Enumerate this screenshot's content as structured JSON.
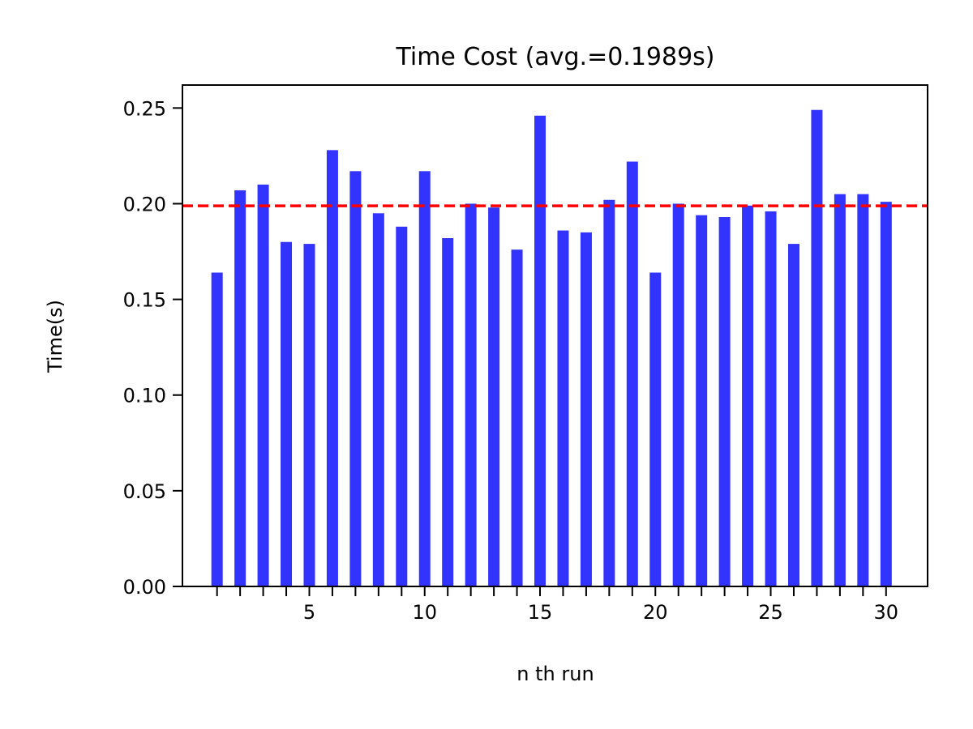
{
  "chart_data": {
    "type": "bar",
    "title": "Time Cost (avg.=0.1989s)",
    "xlabel": "n th run",
    "ylabel": "Time(s)",
    "x": [
      1,
      2,
      3,
      4,
      5,
      6,
      7,
      8,
      9,
      10,
      11,
      12,
      13,
      14,
      15,
      16,
      17,
      18,
      19,
      20,
      21,
      22,
      23,
      24,
      25,
      26,
      27,
      28,
      29,
      30
    ],
    "values": [
      0.164,
      0.207,
      0.21,
      0.18,
      0.179,
      0.228,
      0.217,
      0.195,
      0.188,
      0.217,
      0.182,
      0.2,
      0.198,
      0.176,
      0.246,
      0.186,
      0.185,
      0.202,
      0.222,
      0.164,
      0.2,
      0.194,
      0.193,
      0.199,
      0.196,
      0.179,
      0.249,
      0.205,
      0.205,
      0.201
    ],
    "average": 0.1989,
    "xlim": [
      -0.5,
      31.8
    ],
    "ylim": [
      0.0,
      0.262
    ],
    "xticks_major": [
      5,
      10,
      15,
      20,
      25,
      30
    ],
    "xticks_minor": [
      1,
      2,
      3,
      4,
      5,
      6,
      7,
      8,
      9,
      10,
      11,
      12,
      13,
      14,
      15,
      16,
      17,
      18,
      19,
      20,
      21,
      22,
      23,
      24,
      25,
      26,
      27,
      28,
      29,
      30
    ],
    "yticks": [
      0.0,
      0.05,
      0.1,
      0.15,
      0.2,
      0.25
    ],
    "ytick_labels": [
      "0.00",
      "0.05",
      "0.10",
      "0.15",
      "0.20",
      "0.25"
    ],
    "grid": false,
    "bar_color": "#3333ff",
    "avg_line_color": "#ff0000",
    "avg_line_style": "dashed"
  }
}
